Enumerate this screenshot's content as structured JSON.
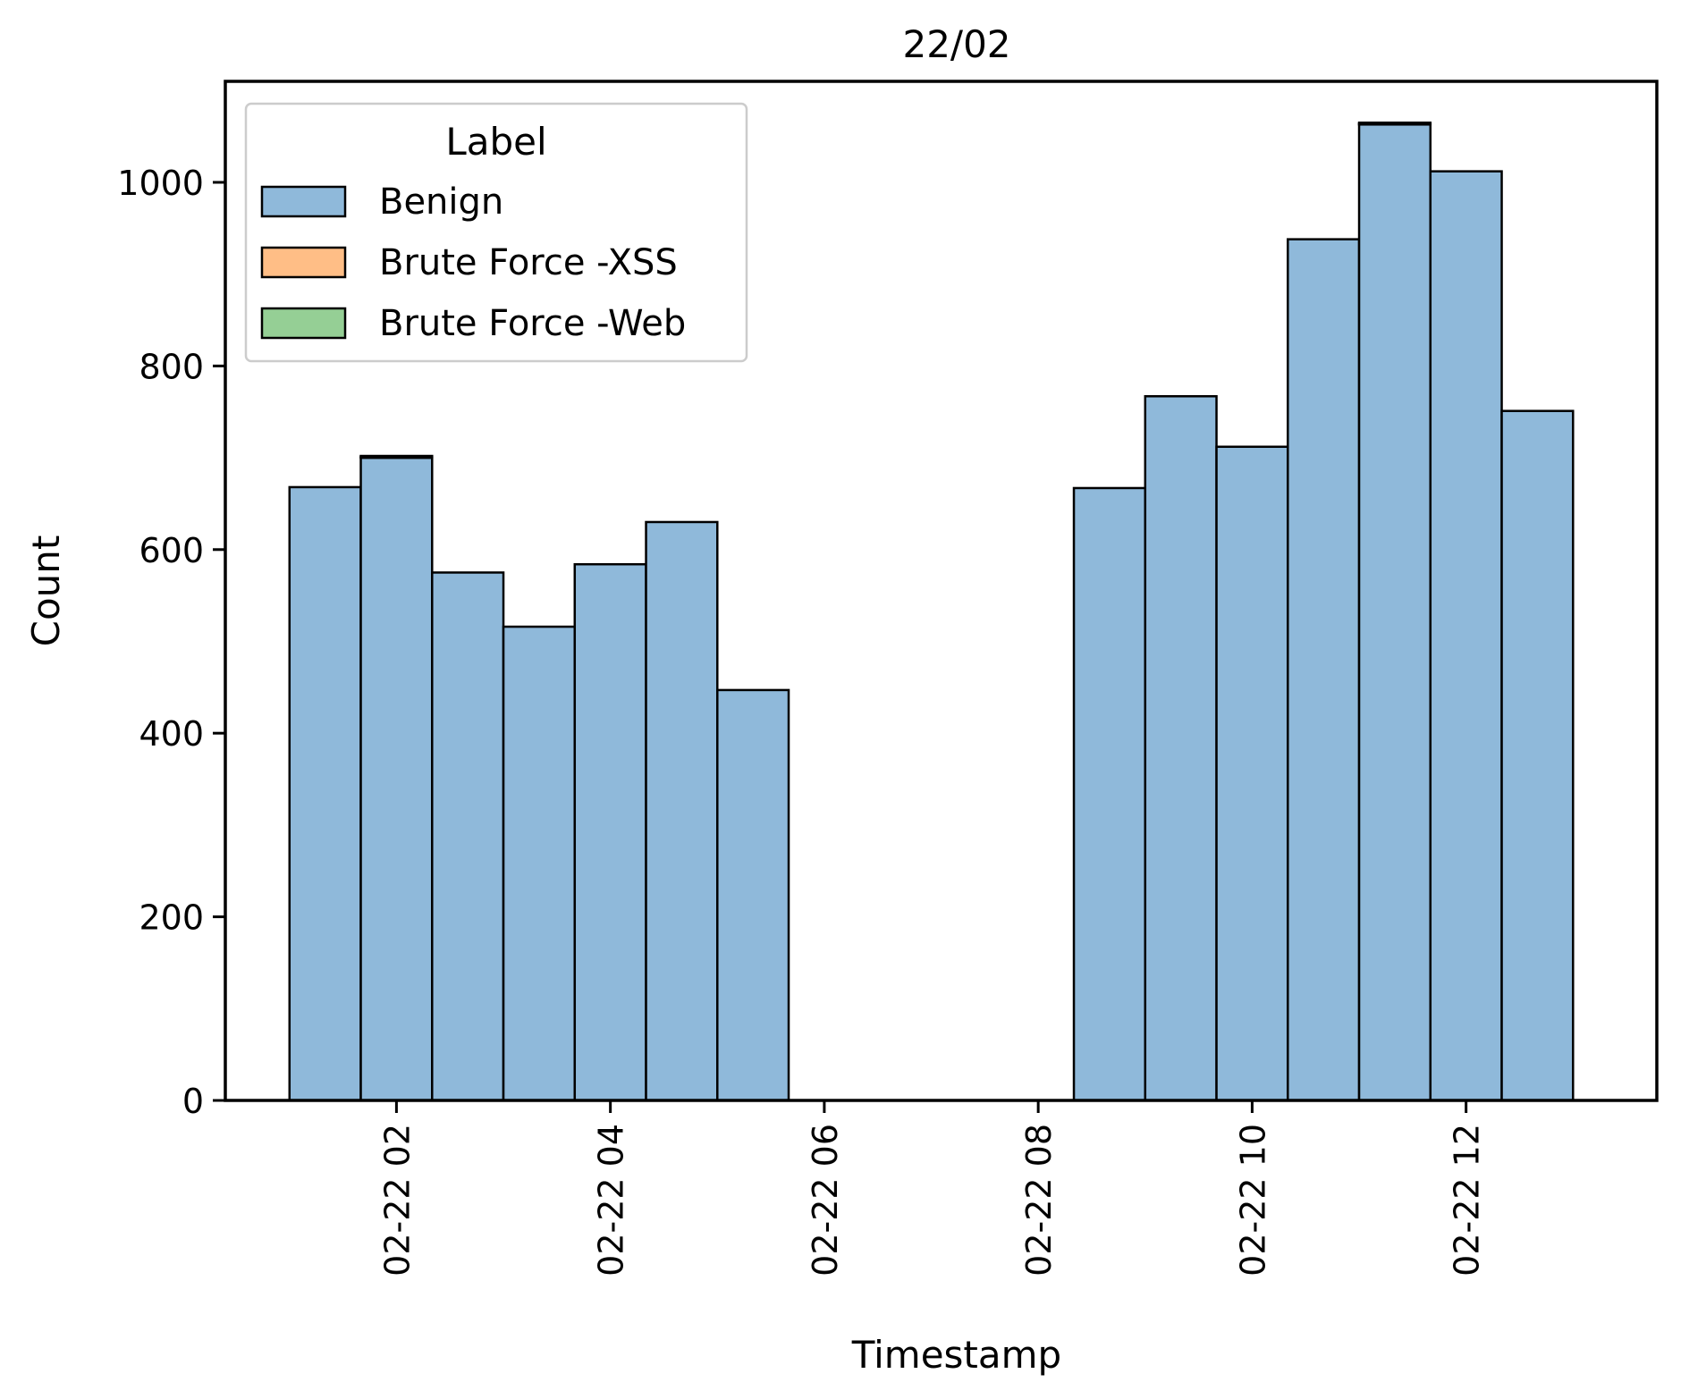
{
  "chart_data": {
    "type": "bar",
    "title": "22/02",
    "xlabel": "Timestamp",
    "ylabel": "Count",
    "x_axis": "time",
    "xlim": [
      "2018-02-22T00:24",
      "2018-02-22T13:47"
    ],
    "ylim": [
      0,
      1110
    ],
    "x_ticks": [
      "02-22 02",
      "02-22 04",
      "02-22 06",
      "02-22 08",
      "02-22 10",
      "02-22 12"
    ],
    "y_ticks": [
      0,
      200,
      400,
      600,
      800,
      1000
    ],
    "grid": false,
    "legend": {
      "title": "Label",
      "placement": "top-left",
      "entries": [
        "Benign",
        "Brute Force -XSS",
        "Brute Force -Web"
      ]
    },
    "bins": [
      {
        "start": "2018-02-22T01:00",
        "end": "2018-02-22T01:40"
      },
      {
        "start": "2018-02-22T01:40",
        "end": "2018-02-22T02:20"
      },
      {
        "start": "2018-02-22T02:20",
        "end": "2018-02-22T03:00"
      },
      {
        "start": "2018-02-22T03:00",
        "end": "2018-02-22T03:40"
      },
      {
        "start": "2018-02-22T03:40",
        "end": "2018-02-22T04:20"
      },
      {
        "start": "2018-02-22T04:20",
        "end": "2018-02-22T05:00"
      },
      {
        "start": "2018-02-22T05:00",
        "end": "2018-02-22T05:40"
      },
      {
        "start": "2018-02-22T05:40",
        "end": "2018-02-22T06:20"
      },
      {
        "start": "2018-02-22T06:20",
        "end": "2018-02-22T07:00"
      },
      {
        "start": "2018-02-22T07:00",
        "end": "2018-02-22T07:40"
      },
      {
        "start": "2018-02-22T07:40",
        "end": "2018-02-22T08:20"
      },
      {
        "start": "2018-02-22T08:20",
        "end": "2018-02-22T09:00"
      },
      {
        "start": "2018-02-22T09:00",
        "end": "2018-02-22T09:40"
      },
      {
        "start": "2018-02-22T09:40",
        "end": "2018-02-22T10:20"
      },
      {
        "start": "2018-02-22T10:20",
        "end": "2018-02-22T11:00"
      },
      {
        "start": "2018-02-22T11:00",
        "end": "2018-02-22T11:40"
      },
      {
        "start": "2018-02-22T11:40",
        "end": "2018-02-22T12:20"
      },
      {
        "start": "2018-02-22T12:20",
        "end": "2018-02-22T13:00"
      }
    ],
    "series": [
      {
        "name": "Benign",
        "color": "#8fb9da",
        "values": [
          668,
          700,
          575,
          516,
          584,
          630,
          447,
          0,
          0,
          0,
          0,
          667,
          767,
          712,
          938,
          1063,
          1012,
          751
        ]
      },
      {
        "name": "Brute Force -XSS",
        "color": "#ffbe86",
        "values": [
          0,
          1,
          0,
          0,
          0,
          0,
          0,
          0,
          0,
          0,
          0,
          0,
          0,
          0,
          0,
          1,
          0,
          0
        ]
      },
      {
        "name": "Brute Force -Web",
        "color": "#95cf95",
        "values": [
          0,
          1,
          0,
          0,
          0,
          0,
          0,
          0,
          0,
          0,
          0,
          0,
          0,
          0,
          0,
          1,
          0,
          0
        ]
      }
    ]
  }
}
